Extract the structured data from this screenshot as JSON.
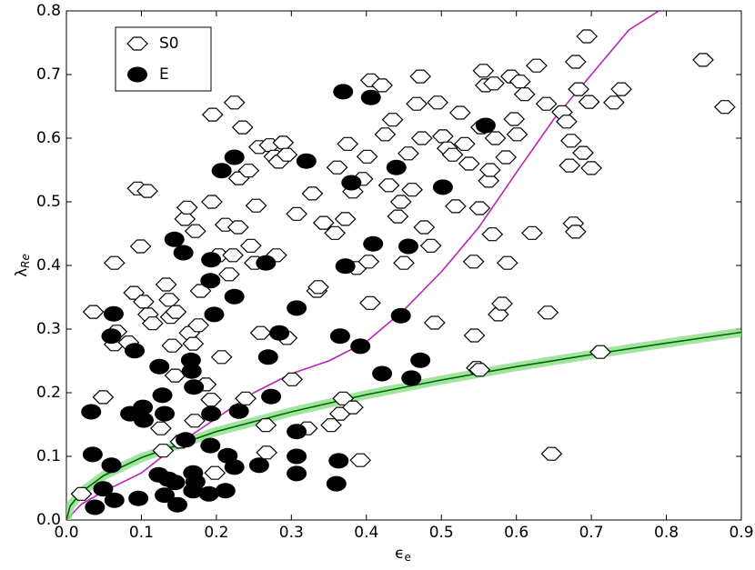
{
  "chart_data": {
    "type": "scatter",
    "xlabel": {
      "symbol": "ϵ",
      "subscript": "e"
    },
    "ylabel": {
      "symbol": "λ",
      "subscript": "Re"
    },
    "xlim": [
      0,
      0.9
    ],
    "ylim": [
      0,
      0.8
    ],
    "xticks": [
      {
        "value": 0,
        "label": "0.0"
      },
      0.1,
      0.2,
      0.3,
      0.4,
      0.5,
      0.6,
      0.7,
      0.8,
      0.9
    ],
    "yticks": [
      {
        "value": 0,
        "label": "0.0"
      },
      0.1,
      0.2,
      0.3,
      0.4,
      0.5,
      0.6,
      0.7,
      0.8
    ],
    "legend": "upper left",
    "series": [
      {
        "type": "scatter",
        "name": "S0",
        "marker": "diamond",
        "color": "#ffffff",
        "x": [
          0.02,
          0.036,
          0.049,
          0.064,
          0.064,
          0.067,
          0.083,
          0.09,
          0.095,
          0.108,
          0.099,
          0.103,
          0.109,
          0.115,
          0.126,
          0.129,
          0.133,
          0.137,
          0.139,
          0.141,
          0.145,
          0.146,
          0.152,
          0.158,
          0.161,
          0.164,
          0.169,
          0.171,
          0.172,
          0.176,
          0.179,
          0.186,
          0.193,
          0.195,
          0.194,
          0.198,
          0.203,
          0.207,
          0.212,
          0.217,
          0.222,
          0.224,
          0.229,
          0.23,
          0.235,
          0.239,
          0.243,
          0.246,
          0.251,
          0.253,
          0.257,
          0.259,
          0.266,
          0.267,
          0.271,
          0.277,
          0.28,
          0.283,
          0.289,
          0.294,
          0.294,
          0.301,
          0.307,
          0.321,
          0.328,
          0.334,
          0.336,
          0.343,
          0.353,
          0.358,
          0.361,
          0.365,
          0.369,
          0.372,
          0.375,
          0.382,
          0.382,
          0.387,
          0.392,
          0.395,
          0.401,
          0.403,
          0.405,
          0.406,
          0.421,
          0.425,
          0.43,
          0.435,
          0.442,
          0.446,
          0.45,
          0.456,
          0.461,
          0.467,
          0.472,
          0.474,
          0.477,
          0.486,
          0.491,
          0.495,
          0.502,
          0.508,
          0.515,
          0.519,
          0.525,
          0.531,
          0.537,
          0.543,
          0.544,
          0.547,
          0.551,
          0.553,
          0.556,
          0.559,
          0.563,
          0.565,
          0.568,
          0.57,
          0.572,
          0.576,
          0.581,
          0.586,
          0.588,
          0.593,
          0.597,
          0.601,
          0.605,
          0.611,
          0.621,
          0.627,
          0.64,
          0.647,
          0.642,
          0.661,
          0.667,
          0.671,
          0.673,
          0.676,
          0.679,
          0.683,
          0.689,
          0.694,
          0.697,
          0.7,
          0.712,
          0.73,
          0.74,
          0.849,
          0.878,
          0.679,
          0.551
        ],
        "values": [
          0.041,
          0.327,
          0.193,
          0.404,
          0.276,
          0.296,
          0.279,
          0.357,
          0.521,
          0.517,
          0.43,
          0.343,
          0.323,
          0.309,
          0.144,
          0.109,
          0.37,
          0.346,
          0.319,
          0.274,
          0.227,
          0.327,
          0.123,
          0.473,
          0.491,
          0.294,
          0.277,
          0.156,
          0.454,
          0.306,
          0.36,
          0.213,
          0.189,
          0.637,
          0.5,
          0.074,
          0.416,
          0.256,
          0.464,
          0.386,
          0.416,
          0.656,
          0.46,
          0.537,
          0.617,
          0.191,
          0.549,
          0.431,
          0.404,
          0.494,
          0.586,
          0.294,
          0.149,
          0.106,
          0.589,
          0.571,
          0.416,
          0.563,
          0.593,
          0.286,
          0.574,
          0.221,
          0.481,
          0.144,
          0.513,
          0.36,
          0.366,
          0.467,
          0.149,
          0.451,
          0.554,
          0.167,
          0.191,
          0.473,
          0.591,
          0.516,
          0.177,
          0.396,
          0.094,
          0.536,
          0.571,
          0.406,
          0.341,
          0.691,
          0.683,
          0.606,
          0.526,
          0.629,
          0.477,
          0.5,
          0.404,
          0.576,
          0.519,
          0.654,
          0.697,
          0.6,
          0.46,
          0.431,
          0.31,
          0.656,
          0.603,
          0.584,
          0.574,
          0.493,
          0.64,
          0.591,
          0.56,
          0.406,
          0.29,
          0.239,
          0.49,
          0.617,
          0.706,
          0.683,
          0.533,
          0.55,
          0.449,
          0.686,
          0.6,
          0.323,
          0.34,
          0.57,
          0.404,
          0.697,
          0.63,
          0.606,
          0.689,
          0.669,
          0.451,
          0.714,
          0.654,
          0.104,
          0.326,
          0.641,
          0.626,
          0.557,
          0.596,
          0.466,
          0.453,
          0.677,
          0.577,
          0.76,
          0.657,
          0.553,
          0.264,
          0.656,
          0.677,
          0.723,
          0.649,
          0.72,
          0.236
        ]
      },
      {
        "type": "scatter",
        "name": "E",
        "marker": "circle",
        "color": "#000000",
        "x": [
          0.033,
          0.035,
          0.038,
          0.049,
          0.063,
          0.06,
          0.064,
          0.06,
          0.091,
          0.085,
          0.096,
          0.102,
          0.103,
          0.124,
          0.128,
          0.131,
          0.123,
          0.131,
          0.144,
          0.136,
          0.148,
          0.145,
          0.159,
          0.166,
          0.167,
          0.17,
          0.169,
          0.172,
          0.169,
          0.156,
          0.19,
          0.192,
          0.193,
          0.193,
          0.192,
          0.197,
          0.207,
          0.212,
          0.215,
          0.224,
          0.224,
          0.224,
          0.23,
          0.257,
          0.266,
          0.269,
          0.273,
          0.284,
          0.307,
          0.307,
          0.307,
          0.307,
          0.32,
          0.365,
          0.363,
          0.36,
          0.369,
          0.38,
          0.372,
          0.392,
          0.406,
          0.409,
          0.421,
          0.44,
          0.446,
          0.456,
          0.46,
          0.472,
          0.502,
          0.559
        ],
        "values": [
          0.17,
          0.103,
          0.02,
          0.049,
          0.324,
          0.289,
          0.031,
          0.086,
          0.266,
          0.167,
          0.034,
          0.177,
          0.157,
          0.241,
          0.196,
          0.167,
          0.071,
          0.039,
          0.441,
          0.064,
          0.024,
          0.059,
          0.126,
          0.251,
          0.234,
          0.209,
          0.074,
          0.06,
          0.046,
          0.42,
          0.041,
          0.117,
          0.167,
          0.409,
          0.376,
          0.323,
          0.549,
          0.046,
          0.101,
          0.57,
          0.351,
          0.083,
          0.171,
          0.086,
          0.404,
          0.256,
          0.194,
          0.294,
          0.139,
          0.1,
          0.073,
          0.333,
          0.564,
          0.289,
          0.093,
          0.057,
          0.673,
          0.53,
          0.399,
          0.273,
          0.664,
          0.434,
          0.23,
          0.554,
          0.321,
          0.43,
          0.223,
          0.251,
          0.523,
          0.62
        ]
      },
      {
        "type": "line",
        "color": "#bb22bb",
        "x": [
          0,
          0.02,
          0.05,
          0.1,
          0.15,
          0.2,
          0.25,
          0.3,
          0.35,
          0.4,
          0.45,
          0.5,
          0.55,
          0.6,
          0.65,
          0.7,
          0.75,
          0.79
        ],
        "values": [
          0,
          0.025,
          0.045,
          0.074,
          0.12,
          0.16,
          0.2,
          0.23,
          0.25,
          0.28,
          0.33,
          0.39,
          0.46,
          0.546,
          0.63,
          0.7,
          0.77,
          0.8
        ]
      },
      {
        "type": "line",
        "color": "#006600",
        "band_color": "#88dd88",
        "x": [
          0,
          0.005,
          0.02,
          0.05,
          0.1,
          0.2,
          0.3,
          0.4,
          0.5,
          0.6,
          0.7,
          0.8,
          0.9
        ],
        "values": [
          0,
          0.022,
          0.044,
          0.07,
          0.098,
          0.139,
          0.17,
          0.197,
          0.22,
          0.241,
          0.26,
          0.278,
          0.295
        ]
      }
    ]
  }
}
